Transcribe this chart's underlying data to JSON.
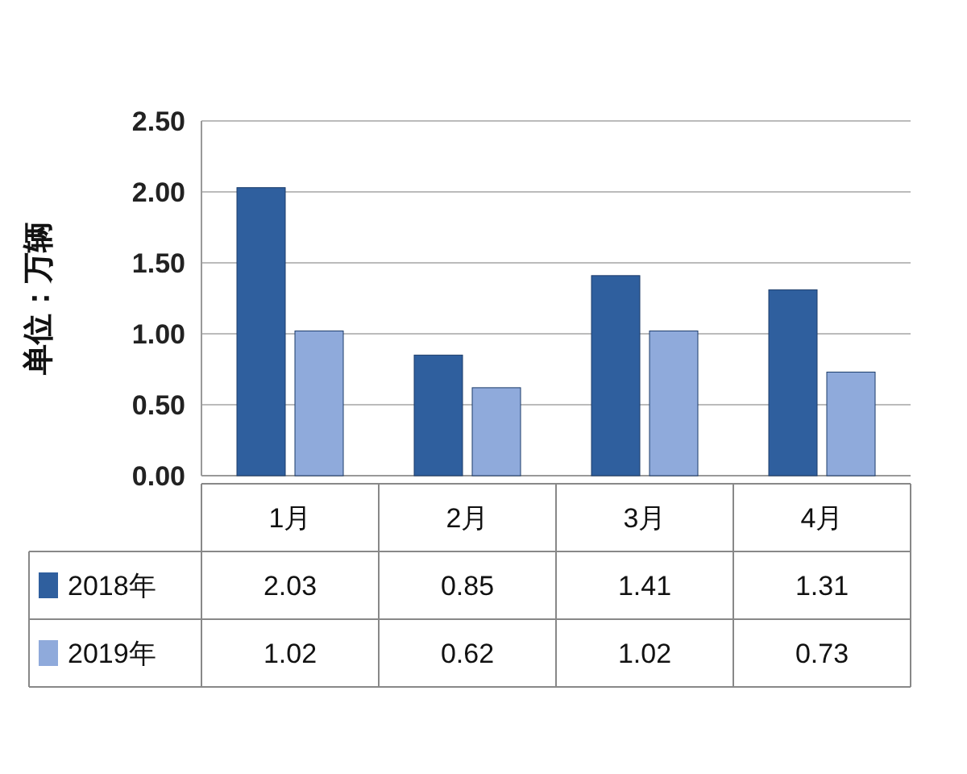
{
  "chart_data": {
    "type": "bar",
    "ylabel": "单位：万辆",
    "categories": [
      "1月",
      "2月",
      "3月",
      "4月"
    ],
    "series": [
      {
        "name": "2018年",
        "color": "#2f5f9e",
        "values": [
          2.03,
          0.85,
          1.41,
          1.31
        ]
      },
      {
        "name": "2019年",
        "color": "#8faadb",
        "values": [
          1.02,
          0.62,
          1.02,
          0.73
        ]
      }
    ],
    "ylim": [
      0,
      2.5
    ],
    "yticks": [
      {
        "value": 0,
        "label": "0.00"
      },
      {
        "value": 0.5,
        "label": "0.50"
      },
      {
        "value": 1,
        "label": "1.00"
      },
      {
        "value": 1.5,
        "label": "1.50"
      },
      {
        "value": 2,
        "label": "2.00"
      },
      {
        "value": 2.5,
        "label": "2.50"
      }
    ],
    "grid": "y",
    "legend": "bottom",
    "data_labels": true
  }
}
